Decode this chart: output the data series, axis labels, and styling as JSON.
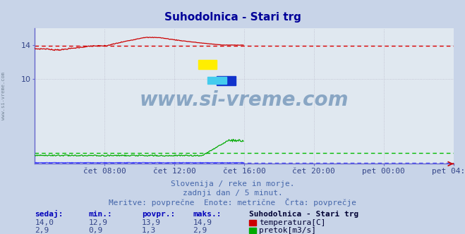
{
  "title": "Suhodolnica - Stari trg",
  "title_color": "#000099",
  "bg_color": "#c8d4e8",
  "plot_bg_color": "#e0e8f0",
  "grid_color": "#ffffff",
  "x_tick_labels": [
    "čet 08:00",
    "čet 12:00",
    "čet 16:00",
    "čet 20:00",
    "pet 00:00",
    "pet 04:00"
  ],
  "x_tick_positions": [
    96,
    192,
    288,
    384,
    480,
    576
  ],
  "y_ticks": [
    10,
    14
  ],
  "y_min": 0,
  "y_max": 16,
  "temp_color": "#cc0000",
  "flow_color": "#00aa00",
  "height_color": "#4444ff",
  "avg_line_color_temp": "#dd0000",
  "avg_line_color_flow": "#00bb00",
  "avg_line_color_height": "#4444ff",
  "temp_avg": 13.9,
  "flow_avg": 1.3,
  "height_avg": 0.15,
  "n_points": 288,
  "subtitle1": "Slovenija / reke in morje.",
  "subtitle2": "zadnji dan / 5 minut.",
  "subtitle3": "Meritve: povprečne  Enote: metrične  Črta: povprečje",
  "footer_color": "#4466aa",
  "label_sedaj": "sedaj:",
  "label_min": "min.:",
  "label_povpr": "povpr.:",
  "label_maks": "maks.:",
  "label_station": "Suhodolnica - Stari trg",
  "temp_sedaj": "14,0",
  "temp_min": "12,9",
  "temp_povpr": "13,9",
  "temp_maks": "14,9",
  "flow_sedaj": "2,9",
  "flow_min": "0,9",
  "flow_povpr": "1,3",
  "flow_maks": "2,9",
  "label_temp": "temperatura[C]",
  "label_flow": "pretok[m3/s]",
  "watermark": "www.si-vreme.com",
  "left_label": "www.si-vreme.com"
}
